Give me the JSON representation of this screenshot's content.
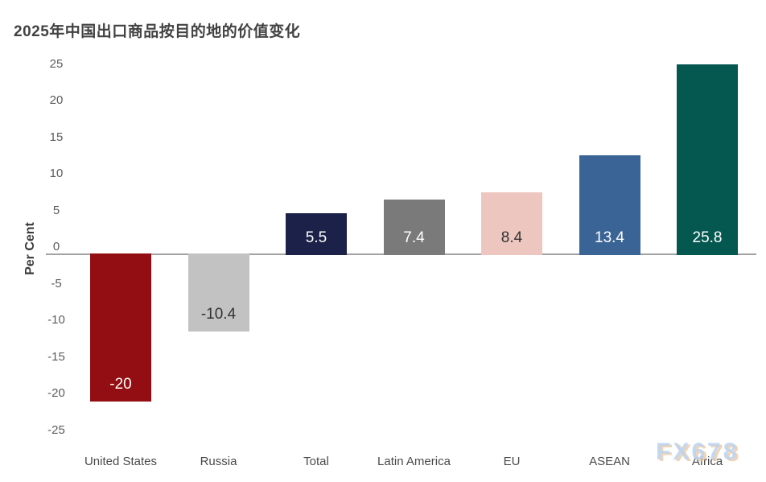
{
  "chart_data": {
    "type": "bar",
    "title": "2025年中国出口商品按目的地的价值变化",
    "ylabel": "Per Cent",
    "xlabel": "",
    "categories": [
      "United States",
      "Russia",
      "Total",
      "Latin America",
      "EU",
      "ASEAN",
      "Africa"
    ],
    "values": [
      -20,
      -10.4,
      5.5,
      7.4,
      8.4,
      13.4,
      25.8
    ],
    "value_labels": [
      "-20",
      "-10.4",
      "5.5",
      "7.4",
      "8.4",
      "13.4",
      "25.8"
    ],
    "bar_colors": [
      "#930E12",
      "#C2C2C2",
      "#1B2148",
      "#7A7A7A",
      "#EDC6C0",
      "#3A6496",
      "#045850"
    ],
    "value_label_colors": [
      "#FFFFFF",
      "#333333",
      "#FFFFFF",
      "#FFFFFF",
      "#333333",
      "#FFFFFF",
      "#FFFFFF"
    ],
    "yticks": [
      25,
      20,
      15,
      10,
      5,
      0,
      -5,
      -10,
      -15,
      -20,
      -25
    ],
    "ylim": [
      -25,
      25
    ],
    "grid": false,
    "legend": false,
    "watermark": "FX678",
    "axis_line_color": "#A3A3A3"
  }
}
